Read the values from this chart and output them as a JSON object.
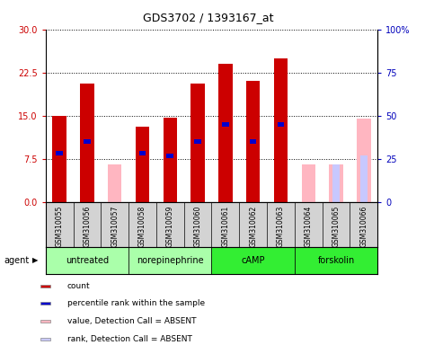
{
  "title": "GDS3702 / 1393167_at",
  "samples": [
    "GSM310055",
    "GSM310056",
    "GSM310057",
    "GSM310058",
    "GSM310059",
    "GSM310060",
    "GSM310061",
    "GSM310062",
    "GSM310063",
    "GSM310064",
    "GSM310065",
    "GSM310066"
  ],
  "count_values": [
    15.0,
    20.5,
    null,
    13.0,
    14.7,
    20.5,
    24.0,
    21.0,
    25.0,
    null,
    null,
    null
  ],
  "rank_values": [
    8.5,
    10.5,
    null,
    8.5,
    8.0,
    10.5,
    13.5,
    10.5,
    13.5,
    null,
    null,
    null
  ],
  "absent_count": [
    null,
    null,
    6.5,
    null,
    null,
    null,
    null,
    null,
    null,
    6.5,
    6.5,
    14.5
  ],
  "absent_rank": [
    null,
    null,
    null,
    null,
    null,
    null,
    null,
    null,
    null,
    null,
    6.5,
    8.0
  ],
  "groups": [
    {
      "label": "untreated",
      "start": 0,
      "end": 3,
      "color": "#aaffaa"
    },
    {
      "label": "norepinephrine",
      "start": 3,
      "end": 6,
      "color": "#aaffaa"
    },
    {
      "label": "cAMP",
      "start": 6,
      "end": 9,
      "color": "#33ee33"
    },
    {
      "label": "forskolin",
      "start": 9,
      "end": 12,
      "color": "#33ee33"
    }
  ],
  "ylim_left": [
    0,
    30
  ],
  "ylim_right": [
    0,
    100
  ],
  "yticks_left": [
    0,
    7.5,
    15,
    22.5,
    30
  ],
  "yticks_right": [
    0,
    25,
    50,
    75,
    100
  ],
  "bar_width": 0.5,
  "rank_bar_width": 0.25,
  "rank_bar_height": 0.8,
  "count_color": "#cc0000",
  "rank_color": "#0000cc",
  "absent_count_color": "#ffb6c1",
  "absent_rank_color": "#c8c8ff",
  "left_color": "#cc0000",
  "right_color": "#0000bb",
  "agent_label": "agent",
  "legend_items": [
    {
      "label": "count",
      "color": "#cc0000"
    },
    {
      "label": "percentile rank within the sample",
      "color": "#0000cc"
    },
    {
      "label": "value, Detection Call = ABSENT",
      "color": "#ffb6c1"
    },
    {
      "label": "rank, Detection Call = ABSENT",
      "color": "#c8c8ff"
    }
  ]
}
